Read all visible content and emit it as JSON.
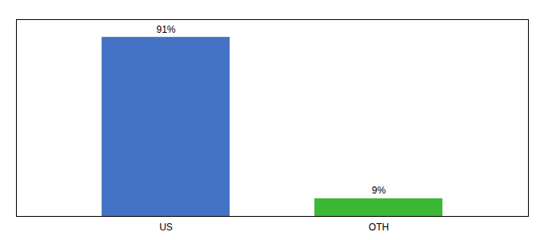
{
  "chart_data": {
    "type": "bar",
    "categories": [
      "US",
      "OTH"
    ],
    "values": [
      91,
      9
    ],
    "value_labels": [
      "91%",
      "9%"
    ],
    "colors": [
      "#4472c4",
      "#3cb834"
    ],
    "ylim": [
      0,
      100
    ],
    "yticks": [],
    "data_labels": true,
    "tick_labels": "x",
    "grid": false
  }
}
